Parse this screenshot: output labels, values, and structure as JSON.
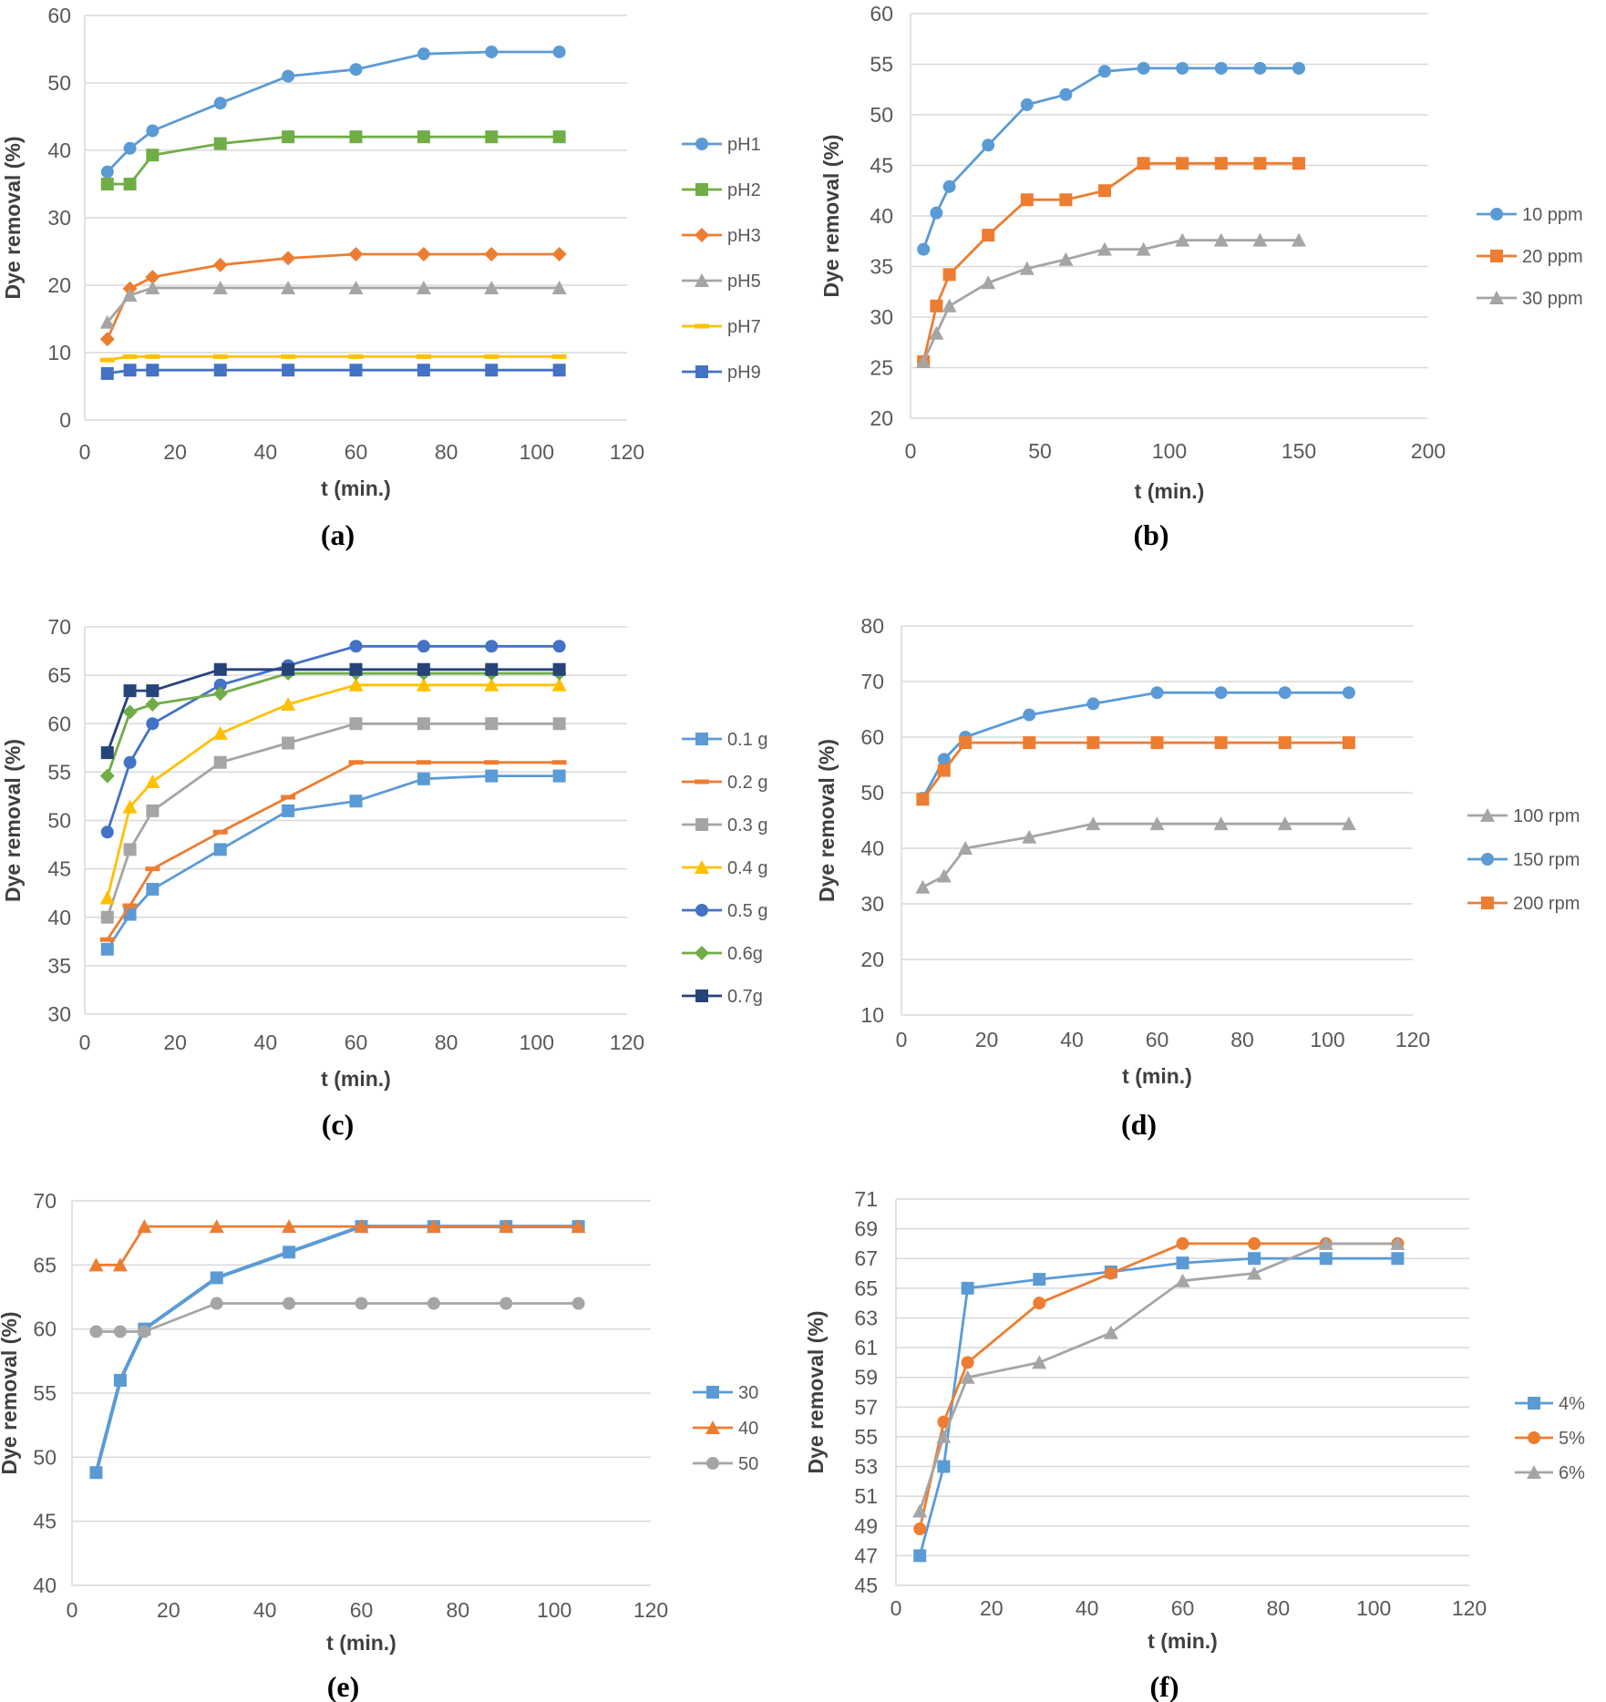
{
  "figure": {
    "label_format": "({p})"
  },
  "chart_data": [
    {
      "type": "line",
      "panel": "a",
      "xlabel": "t (min.)",
      "ylabel": "Dye removal (%)",
      "xlim": [
        0,
        120
      ],
      "xstep": 20,
      "ylim": [
        0,
        60
      ],
      "ystep": 10,
      "yticks": [
        "0",
        "10",
        "20",
        "30",
        "40",
        "50",
        "60"
      ],
      "xticks": [
        "0",
        "20",
        "40",
        "60",
        "80",
        "100",
        "120"
      ],
      "grid": true,
      "legend": "right",
      "series": [
        {
          "name": "pH1",
          "color": "#5B9BD5",
          "marker": "circle",
          "x": [
            5,
            10,
            15,
            30,
            45,
            60,
            75,
            90,
            105
          ],
          "y": [
            36.8,
            40.3,
            42.9,
            47,
            51,
            52,
            54.3,
            54.6,
            54.6
          ]
        },
        {
          "name": "pH2",
          "color": "#70AD47",
          "marker": "square",
          "x": [
            5,
            10,
            15,
            30,
            45,
            60,
            75,
            90,
            105
          ],
          "y": [
            35,
            35,
            39.3,
            41,
            42,
            42,
            42,
            42,
            42
          ]
        },
        {
          "name": "pH3",
          "color": "#ED7D31",
          "marker": "diamond",
          "x": [
            5,
            10,
            15,
            30,
            45,
            60,
            75,
            90,
            105
          ],
          "y": [
            12,
            19.5,
            21.2,
            23,
            24,
            24.6,
            24.6,
            24.6,
            24.6
          ]
        },
        {
          "name": "pH5",
          "color": "#A5A5A5",
          "marker": "triangle",
          "x": [
            5,
            10,
            15,
            30,
            45,
            60,
            75,
            90,
            105
          ],
          "y": [
            14.5,
            18.5,
            19.6,
            19.6,
            19.6,
            19.6,
            19.6,
            19.6,
            19.6
          ]
        },
        {
          "name": "pH7",
          "color": "#FFC000",
          "marker": "dash",
          "x": [
            5,
            10,
            15,
            30,
            45,
            60,
            75,
            90,
            105
          ],
          "y": [
            8.9,
            9.4,
            9.4,
            9.4,
            9.4,
            9.4,
            9.4,
            9.4,
            9.4
          ]
        },
        {
          "name": "pH9",
          "color": "#4472C4",
          "marker": "square",
          "x": [
            5,
            10,
            15,
            30,
            45,
            60,
            75,
            90,
            105
          ],
          "y": [
            6.9,
            7.4,
            7.4,
            7.4,
            7.4,
            7.4,
            7.4,
            7.4,
            7.4
          ]
        }
      ]
    },
    {
      "type": "line",
      "panel": "b",
      "xlabel": "t (min.)",
      "ylabel": "Dye removal (%)",
      "xlim": [
        0,
        200
      ],
      "xstep": 50,
      "ylim": [
        20,
        60
      ],
      "ystep": 5,
      "yticks": [
        "20",
        "25",
        "30",
        "35",
        "40",
        "45",
        "50",
        "55",
        "60"
      ],
      "xticks": [
        "0",
        "50",
        "100",
        "150",
        "200"
      ],
      "grid": true,
      "legend": "right",
      "series": [
        {
          "name": "10 ppm",
          "color": "#5B9BD5",
          "marker": "circle",
          "x": [
            5,
            10,
            15,
            30,
            45,
            60,
            75,
            90,
            105,
            120,
            135,
            150
          ],
          "y": [
            36.7,
            40.3,
            42.9,
            47,
            51,
            52,
            54.3,
            54.6,
            54.6,
            54.6,
            54.6,
            54.6
          ]
        },
        {
          "name": "20 ppm",
          "color": "#ED7D31",
          "marker": "square",
          "x": [
            5,
            10,
            15,
            30,
            45,
            60,
            75,
            90,
            105,
            120,
            135,
            150
          ],
          "y": [
            25.6,
            31.1,
            34.2,
            38.1,
            41.6,
            41.6,
            42.5,
            45.2,
            45.2,
            45.2,
            45.2,
            45.2
          ]
        },
        {
          "name": "30 ppm",
          "color": "#A5A5A5",
          "marker": "triangle",
          "x": [
            5,
            10,
            15,
            30,
            45,
            60,
            75,
            90,
            105,
            120,
            135,
            150
          ],
          "y": [
            25.6,
            28.4,
            31.1,
            33.4,
            34.8,
            35.7,
            36.7,
            36.7,
            37.6,
            37.6,
            37.6,
            37.6
          ]
        }
      ]
    },
    {
      "type": "line",
      "panel": "c",
      "xlabel": "t (min.)",
      "ylabel": "Dye removal (%)",
      "xlim": [
        0,
        120
      ],
      "xstep": 20,
      "ylim": [
        30,
        70
      ],
      "ystep": 5,
      "yticks": [
        "30",
        "35",
        "40",
        "45",
        "50",
        "55",
        "60",
        "65",
        "70"
      ],
      "xticks": [
        "0",
        "20",
        "40",
        "60",
        "80",
        "100",
        "120"
      ],
      "grid": true,
      "legend": "right",
      "series": [
        {
          "name": "0.1 g",
          "color": "#5B9BD5",
          "marker": "square",
          "x": [
            5,
            10,
            15,
            30,
            45,
            60,
            75,
            90,
            105
          ],
          "y": [
            36.7,
            40.3,
            42.9,
            47,
            51,
            52,
            54.3,
            54.6,
            54.6
          ]
        },
        {
          "name": "0.2 g",
          "color": "#ED7D31",
          "marker": "dash",
          "x": [
            5,
            10,
            15,
            30,
            45,
            60,
            75,
            90,
            105
          ],
          "y": [
            37.7,
            41.2,
            45,
            48.8,
            52.4,
            56,
            56,
            56,
            56
          ]
        },
        {
          "name": "0.3 g",
          "color": "#A5A5A5",
          "marker": "square",
          "x": [
            5,
            10,
            15,
            30,
            45,
            60,
            75,
            90,
            105
          ],
          "y": [
            40,
            47,
            51,
            56,
            58,
            60,
            60,
            60,
            60
          ]
        },
        {
          "name": "0.4 g",
          "color": "#FFC000",
          "marker": "triangle",
          "x": [
            5,
            10,
            15,
            30,
            45,
            60,
            75,
            90,
            105
          ],
          "y": [
            42,
            51.4,
            54,
            59,
            62,
            64,
            64,
            64,
            64
          ]
        },
        {
          "name": "0.5 g",
          "color": "#4472C4",
          "marker": "circle",
          "x": [
            5,
            10,
            15,
            30,
            45,
            60,
            75,
            90,
            105
          ],
          "y": [
            48.8,
            56,
            60,
            64,
            66,
            68,
            68,
            68,
            68
          ]
        },
        {
          "name": "0.6g",
          "color": "#70AD47",
          "marker": "diamond",
          "x": [
            5,
            10,
            15,
            30,
            45,
            60,
            75,
            90,
            105
          ],
          "y": [
            54.6,
            61.2,
            62,
            63.1,
            65.2,
            65.2,
            65.2,
            65.2,
            65.2
          ]
        },
        {
          "name": "0.7g",
          "color": "#264478",
          "marker": "square",
          "x": [
            5,
            10,
            15,
            30,
            45,
            60,
            75,
            90,
            105
          ],
          "y": [
            57,
            63.4,
            63.4,
            65.6,
            65.6,
            65.6,
            65.6,
            65.6,
            65.6
          ]
        }
      ]
    },
    {
      "type": "line",
      "panel": "d",
      "xlabel": "t (min.)",
      "ylabel": "Dye removal (%)",
      "xlim": [
        0,
        120
      ],
      "xstep": 20,
      "ylim": [
        10,
        80
      ],
      "ystep": 10,
      "yticks": [
        "10",
        "20",
        "30",
        "40",
        "50",
        "60",
        "70",
        "80"
      ],
      "xticks": [
        "0",
        "20",
        "40",
        "60",
        "80",
        "100",
        "120"
      ],
      "grid": true,
      "legend": "right",
      "series": [
        {
          "name": "100 rpm",
          "color": "#A5A5A5",
          "marker": "triangle",
          "x": [
            5,
            10,
            15,
            30,
            45,
            60,
            75,
            90,
            105
          ],
          "y": [
            33,
            35,
            40,
            42,
            44.4,
            44.4,
            44.4,
            44.4,
            44.4
          ]
        },
        {
          "name": "150 rpm",
          "color": "#5B9BD5",
          "marker": "circle",
          "x": [
            5,
            10,
            15,
            30,
            45,
            60,
            75,
            90,
            105
          ],
          "y": [
            49,
            56,
            60,
            64,
            66,
            68,
            68,
            68,
            68
          ]
        },
        {
          "name": "200 rpm",
          "color": "#ED7D31",
          "marker": "square",
          "x": [
            5,
            10,
            15,
            30,
            45,
            60,
            75,
            90,
            105
          ],
          "y": [
            48.8,
            54,
            59,
            59,
            59,
            59,
            59,
            59,
            59
          ]
        }
      ]
    },
    {
      "type": "line",
      "panel": "e",
      "xlabel": "t (min.)",
      "ylabel": "Dye removal (%)",
      "xlim": [
        0,
        120
      ],
      "xstep": 20,
      "ylim": [
        40,
        70
      ],
      "ystep": 5,
      "yticks": [
        "40",
        "45",
        "50",
        "55",
        "60",
        "65",
        "70"
      ],
      "xticks": [
        "0",
        "20",
        "40",
        "60",
        "80",
        "100",
        "120"
      ],
      "grid": true,
      "legend": "right",
      "series": [
        {
          "name": "30",
          "color": "#5B9BD5",
          "marker": "square",
          "width": 4,
          "x": [
            5,
            10,
            15,
            30,
            45,
            60,
            75,
            90,
            105
          ],
          "y": [
            48.8,
            56,
            60,
            64,
            66,
            68,
            68,
            68,
            68
          ]
        },
        {
          "name": "40",
          "color": "#ED7D31",
          "marker": "triangle",
          "x": [
            5,
            10,
            15,
            30,
            45,
            60,
            75,
            90,
            105
          ],
          "y": [
            65,
            65,
            68,
            68,
            68,
            68,
            68,
            68,
            68
          ]
        },
        {
          "name": "50",
          "color": "#A5A5A5",
          "marker": "circle",
          "x": [
            5,
            10,
            15,
            30,
            45,
            60,
            75,
            90,
            105
          ],
          "y": [
            59.8,
            59.8,
            59.8,
            62,
            62,
            62,
            62,
            62,
            62
          ]
        }
      ]
    },
    {
      "type": "line",
      "panel": "f",
      "xlabel": "t (min.)",
      "ylabel": "Dye removal (%)",
      "xlim": [
        0,
        120
      ],
      "xstep": 20,
      "ylim": [
        45,
        71
      ],
      "ystep": 2,
      "yticks": [
        "45",
        "47",
        "49",
        "51",
        "53",
        "55",
        "57",
        "59",
        "61",
        "63",
        "65",
        "67",
        "69",
        "71"
      ],
      "xticks": [
        "0",
        "20",
        "40",
        "60",
        "80",
        "100",
        "120"
      ],
      "grid": true,
      "legend": "right",
      "series": [
        {
          "name": "4%",
          "color": "#5B9BD5",
          "marker": "square",
          "x": [
            5,
            10,
            15,
            30,
            45,
            60,
            75,
            90,
            105
          ],
          "y": [
            47,
            53,
            65,
            65.6,
            66.1,
            66.7,
            67,
            67,
            67
          ]
        },
        {
          "name": "5%",
          "color": "#ED7D31",
          "marker": "circle",
          "x": [
            5,
            10,
            15,
            30,
            45,
            60,
            75,
            90,
            105
          ],
          "y": [
            48.8,
            56,
            60,
            64,
            66,
            68,
            68,
            68,
            68
          ]
        },
        {
          "name": "6%",
          "color": "#A5A5A5",
          "marker": "triangle",
          "x": [
            5,
            10,
            15,
            30,
            45,
            60,
            75,
            90,
            105
          ],
          "y": [
            50,
            55,
            59,
            60,
            62,
            65.5,
            66,
            68,
            68
          ]
        }
      ]
    }
  ]
}
